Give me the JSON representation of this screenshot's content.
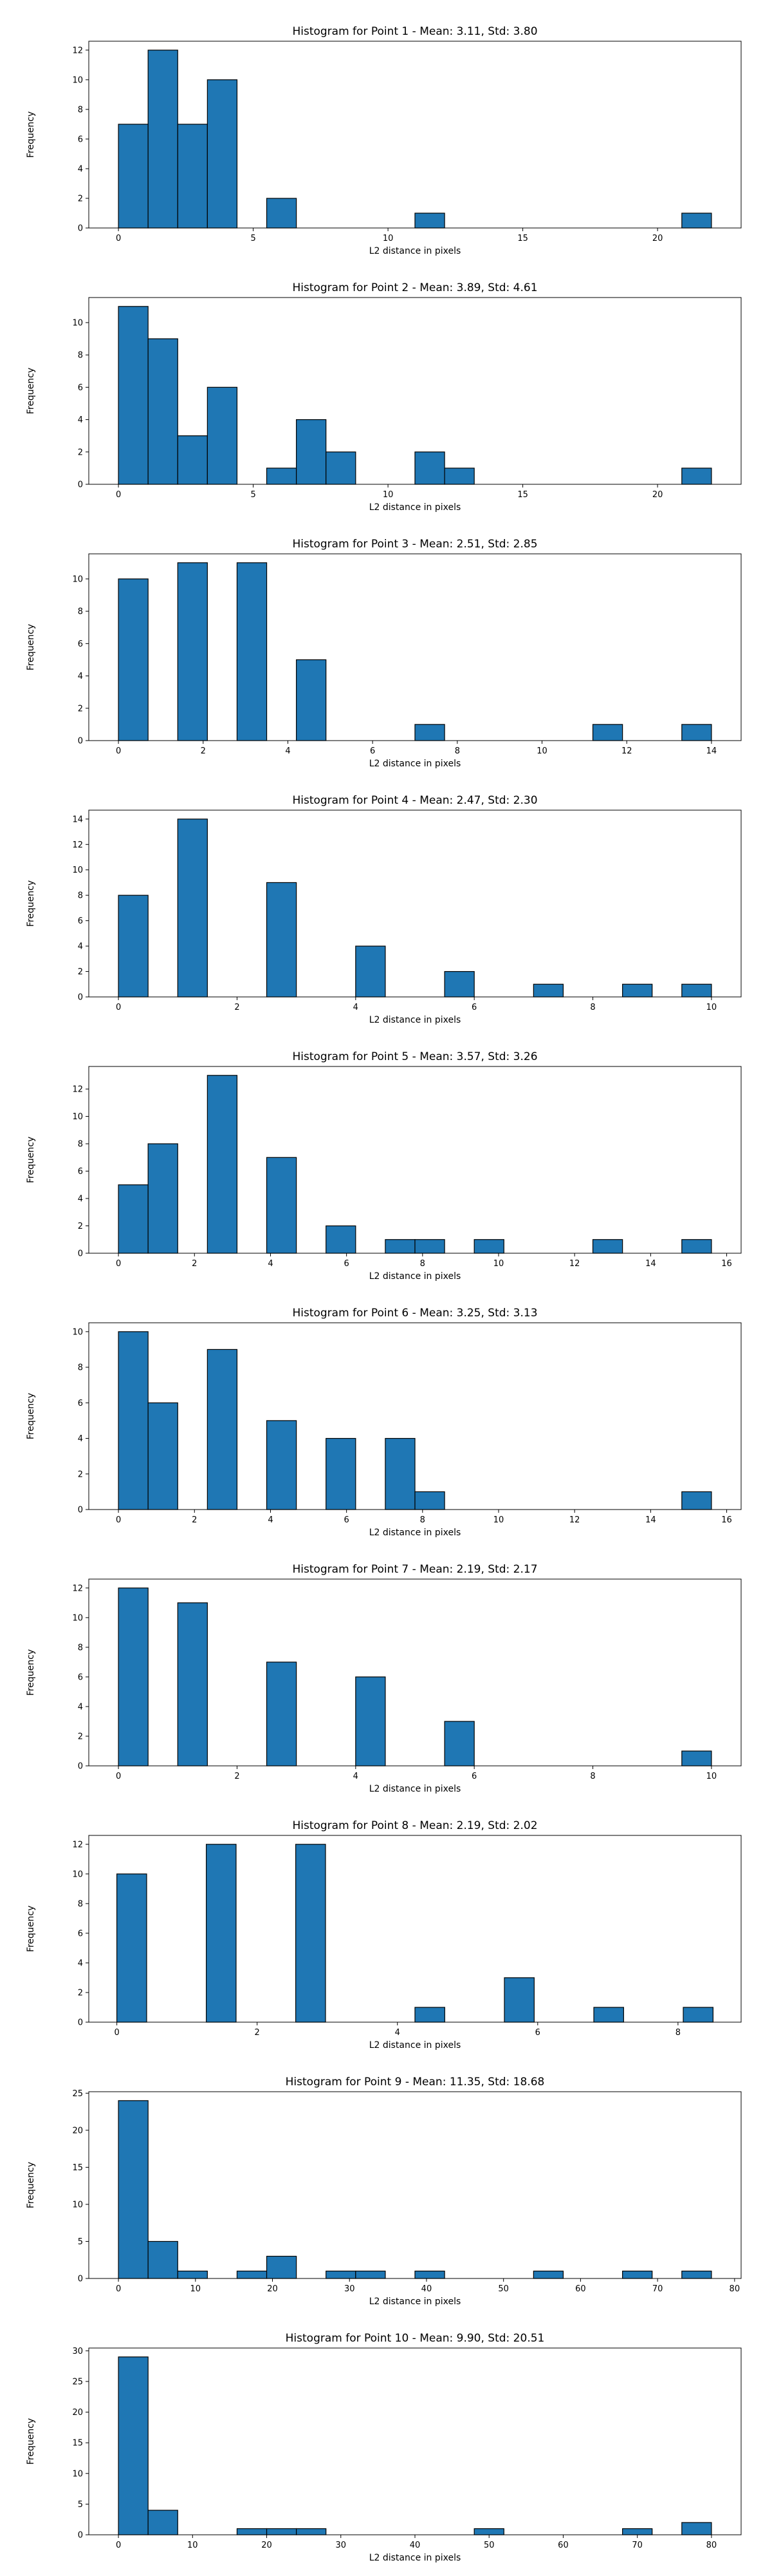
{
  "figure": {
    "bar_color": "#1f77b4",
    "edge_color": "#000000"
  },
  "chart_data": [
    {
      "type": "bar",
      "title": "Histogram for Point 1 - Mean: 3.11, Std: 3.80",
      "xlabel": "L2 distance in pixels",
      "ylabel": "Frequency",
      "xlim": [
        -1.1,
        23.1
      ],
      "ylim": [
        0,
        12.6
      ],
      "xticks": [
        0,
        5,
        10,
        15,
        20
      ],
      "yticks": [
        0,
        2,
        4,
        6,
        8,
        10,
        12
      ],
      "grid": false,
      "bars": [
        {
          "x0": 0.0,
          "x1": 1.1,
          "count": 7
        },
        {
          "x0": 1.1,
          "x1": 2.2,
          "count": 12
        },
        {
          "x0": 2.2,
          "x1": 3.3,
          "count": 7
        },
        {
          "x0": 3.3,
          "x1": 4.4,
          "count": 10
        },
        {
          "x0": 5.5,
          "x1": 6.6,
          "count": 2
        },
        {
          "x0": 11.0,
          "x1": 12.1,
          "count": 1
        },
        {
          "x0": 20.9,
          "x1": 22.0,
          "count": 1
        }
      ]
    },
    {
      "type": "bar",
      "title": "Histogram for Point 2 - Mean: 3.89, Std: 4.61",
      "xlabel": "L2 distance in pixels",
      "ylabel": "Frequency",
      "xlim": [
        -1.1,
        23.1
      ],
      "ylim": [
        0,
        11.55
      ],
      "xticks": [
        0,
        5,
        10,
        15,
        20
      ],
      "yticks": [
        0,
        2,
        4,
        6,
        8,
        10
      ],
      "grid": false,
      "bars": [
        {
          "x0": 0.0,
          "x1": 1.1,
          "count": 11
        },
        {
          "x0": 1.1,
          "x1": 2.2,
          "count": 9
        },
        {
          "x0": 2.2,
          "x1": 3.3,
          "count": 3
        },
        {
          "x0": 3.3,
          "x1": 4.4,
          "count": 6
        },
        {
          "x0": 5.5,
          "x1": 6.6,
          "count": 1
        },
        {
          "x0": 6.6,
          "x1": 7.7,
          "count": 4
        },
        {
          "x0": 7.7,
          "x1": 8.8,
          "count": 2
        },
        {
          "x0": 11.0,
          "x1": 12.1,
          "count": 2
        },
        {
          "x0": 12.1,
          "x1": 13.2,
          "count": 1
        },
        {
          "x0": 20.9,
          "x1": 22.0,
          "count": 1
        }
      ]
    },
    {
      "type": "bar",
      "title": "Histogram for Point 3 - Mean: 2.51, Std: 2.85",
      "xlabel": "L2 distance in pixels",
      "ylabel": "Frequency",
      "xlim": [
        -0.7,
        14.7
      ],
      "ylim": [
        0,
        11.55
      ],
      "xticks": [
        0,
        2,
        4,
        6,
        8,
        10,
        12,
        14
      ],
      "yticks": [
        0,
        2,
        4,
        6,
        8,
        10
      ],
      "grid": false,
      "bars": [
        {
          "x0": 0.0,
          "x1": 0.7,
          "count": 10
        },
        {
          "x0": 1.4,
          "x1": 2.1,
          "count": 11
        },
        {
          "x0": 2.8,
          "x1": 3.5,
          "count": 11
        },
        {
          "x0": 4.2,
          "x1": 4.9,
          "count": 5
        },
        {
          "x0": 7.0,
          "x1": 7.7,
          "count": 1
        },
        {
          "x0": 11.2,
          "x1": 11.9,
          "count": 1
        },
        {
          "x0": 13.3,
          "x1": 14.0,
          "count": 1
        }
      ]
    },
    {
      "type": "bar",
      "title": "Histogram for Point 4 - Mean: 2.47, Std: 2.30",
      "xlabel": "L2 distance in pixels",
      "ylabel": "Frequency",
      "xlim": [
        -0.5,
        10.5
      ],
      "ylim": [
        0,
        14.7
      ],
      "xticks": [
        0,
        2,
        4,
        6,
        8,
        10
      ],
      "yticks": [
        0,
        2,
        4,
        6,
        8,
        10,
        12,
        14
      ],
      "grid": false,
      "bars": [
        {
          "x0": 0.0,
          "x1": 0.5,
          "count": 8
        },
        {
          "x0": 1.0,
          "x1": 1.5,
          "count": 14
        },
        {
          "x0": 2.5,
          "x1": 3.0,
          "count": 9
        },
        {
          "x0": 4.0,
          "x1": 4.5,
          "count": 4
        },
        {
          "x0": 5.5,
          "x1": 6.0,
          "count": 2
        },
        {
          "x0": 7.0,
          "x1": 7.5,
          "count": 1
        },
        {
          "x0": 8.5,
          "x1": 9.0,
          "count": 1
        },
        {
          "x0": 9.5,
          "x1": 10.0,
          "count": 1
        }
      ]
    },
    {
      "type": "bar",
      "title": "Histogram for Point 5 - Mean: 3.57, Std: 3.26",
      "xlabel": "L2 distance in pixels",
      "ylabel": "Frequency",
      "xlim": [
        -0.78,
        16.38
      ],
      "ylim": [
        0,
        13.65
      ],
      "xticks": [
        0,
        2,
        4,
        6,
        8,
        10,
        12,
        14,
        16
      ],
      "yticks": [
        0,
        2,
        4,
        6,
        8,
        10,
        12
      ],
      "grid": false,
      "bars": [
        {
          "x0": 0.0,
          "x1": 0.78,
          "count": 5
        },
        {
          "x0": 0.78,
          "x1": 1.56,
          "count": 8
        },
        {
          "x0": 2.34,
          "x1": 3.12,
          "count": 13
        },
        {
          "x0": 3.9,
          "x1": 4.68,
          "count": 7
        },
        {
          "x0": 5.46,
          "x1": 6.24,
          "count": 2
        },
        {
          "x0": 7.02,
          "x1": 7.8,
          "count": 1
        },
        {
          "x0": 7.8,
          "x1": 8.58,
          "count": 1
        },
        {
          "x0": 9.36,
          "x1": 10.14,
          "count": 1
        },
        {
          "x0": 12.48,
          "x1": 13.26,
          "count": 1
        },
        {
          "x0": 14.82,
          "x1": 15.6,
          "count": 1
        }
      ]
    },
    {
      "type": "bar",
      "title": "Histogram for Point 6 - Mean: 3.25, Std: 3.13",
      "xlabel": "L2 distance in pixels",
      "ylabel": "Frequency",
      "xlim": [
        -0.78,
        16.38
      ],
      "ylim": [
        0,
        10.5
      ],
      "xticks": [
        0,
        2,
        4,
        6,
        8,
        10,
        12,
        14,
        16
      ],
      "yticks": [
        0,
        2,
        4,
        6,
        8,
        10
      ],
      "grid": false,
      "bars": [
        {
          "x0": 0.0,
          "x1": 0.78,
          "count": 10
        },
        {
          "x0": 0.78,
          "x1": 1.56,
          "count": 6
        },
        {
          "x0": 2.34,
          "x1": 3.12,
          "count": 9
        },
        {
          "x0": 3.9,
          "x1": 4.68,
          "count": 5
        },
        {
          "x0": 5.46,
          "x1": 6.24,
          "count": 4
        },
        {
          "x0": 7.02,
          "x1": 7.8,
          "count": 4
        },
        {
          "x0": 7.8,
          "x1": 8.58,
          "count": 1
        },
        {
          "x0": 14.82,
          "x1": 15.6,
          "count": 1
        }
      ]
    },
    {
      "type": "bar",
      "title": "Histogram for Point 7 - Mean: 2.19, Std: 2.17",
      "xlabel": "L2 distance in pixels",
      "ylabel": "Frequency",
      "xlim": [
        -0.5,
        10.5
      ],
      "ylim": [
        0,
        12.6
      ],
      "xticks": [
        0,
        2,
        4,
        6,
        8,
        10
      ],
      "yticks": [
        0,
        2,
        4,
        6,
        8,
        10,
        12
      ],
      "grid": false,
      "bars": [
        {
          "x0": 0.0,
          "x1": 0.5,
          "count": 12
        },
        {
          "x0": 1.0,
          "x1": 1.5,
          "count": 11
        },
        {
          "x0": 2.5,
          "x1": 3.0,
          "count": 7
        },
        {
          "x0": 4.0,
          "x1": 4.5,
          "count": 6
        },
        {
          "x0": 5.5,
          "x1": 6.0,
          "count": 3
        },
        {
          "x0": 9.5,
          "x1": 10.0,
          "count": 1
        }
      ]
    },
    {
      "type": "bar",
      "title": "Histogram for Point 8 - Mean: 2.19, Std: 2.02",
      "xlabel": "L2 distance in pixels",
      "ylabel": "Frequency",
      "xlim": [
        -0.4,
        8.9
      ],
      "ylim": [
        0,
        12.6
      ],
      "xticks": [
        0,
        2,
        4,
        6,
        8
      ],
      "yticks": [
        0,
        2,
        4,
        6,
        8,
        10,
        12
      ],
      "grid": false,
      "bars": [
        {
          "x0": 0.0,
          "x1": 0.425,
          "count": 10
        },
        {
          "x0": 1.275,
          "x1": 1.7,
          "count": 12
        },
        {
          "x0": 2.55,
          "x1": 2.975,
          "count": 12
        },
        {
          "x0": 4.25,
          "x1": 4.675,
          "count": 1
        },
        {
          "x0": 5.525,
          "x1": 5.95,
          "count": 3
        },
        {
          "x0": 6.8,
          "x1": 7.225,
          "count": 1
        },
        {
          "x0": 8.075,
          "x1": 8.5,
          "count": 1
        }
      ]
    },
    {
      "type": "bar",
      "title": "Histogram for Point 9 - Mean: 11.35, Std: 18.68",
      "xlabel": "L2 distance in pixels",
      "ylabel": "Frequency",
      "xlim": [
        -3.85,
        80.85
      ],
      "ylim": [
        0,
        25.2
      ],
      "xticks": [
        0,
        10,
        20,
        30,
        40,
        50,
        60,
        70,
        80
      ],
      "yticks": [
        0,
        5,
        10,
        15,
        20,
        25
      ],
      "grid": false,
      "bars": [
        {
          "x0": 0.0,
          "x1": 3.85,
          "count": 24
        },
        {
          "x0": 3.85,
          "x1": 7.7,
          "count": 5
        },
        {
          "x0": 7.7,
          "x1": 11.55,
          "count": 1
        },
        {
          "x0": 15.4,
          "x1": 19.25,
          "count": 1
        },
        {
          "x0": 19.25,
          "x1": 23.1,
          "count": 3
        },
        {
          "x0": 26.95,
          "x1": 30.8,
          "count": 1
        },
        {
          "x0": 30.8,
          "x1": 34.65,
          "count": 1
        },
        {
          "x0": 38.5,
          "x1": 42.35,
          "count": 1
        },
        {
          "x0": 53.9,
          "x1": 57.75,
          "count": 1
        },
        {
          "x0": 65.45,
          "x1": 69.3,
          "count": 1
        },
        {
          "x0": 73.15,
          "x1": 77.0,
          "count": 1
        }
      ]
    },
    {
      "type": "bar",
      "title": "Histogram for Point 10 - Mean: 9.90, Std: 20.51",
      "xlabel": "L2 distance in pixels",
      "ylabel": "Frequency",
      "xlim": [
        -4.0,
        84.0
      ],
      "ylim": [
        0,
        30.45
      ],
      "xticks": [
        0,
        10,
        20,
        30,
        40,
        50,
        60,
        70,
        80
      ],
      "yticks": [
        0,
        5,
        10,
        15,
        20,
        25,
        30
      ],
      "grid": false,
      "bars": [
        {
          "x0": 0.0,
          "x1": 4.0,
          "count": 29
        },
        {
          "x0": 4.0,
          "x1": 8.0,
          "count": 4
        },
        {
          "x0": 16.0,
          "x1": 20.0,
          "count": 1
        },
        {
          "x0": 20.0,
          "x1": 24.0,
          "count": 1
        },
        {
          "x0": 24.0,
          "x1": 28.0,
          "count": 1
        },
        {
          "x0": 48.0,
          "x1": 52.0,
          "count": 1
        },
        {
          "x0": 68.0,
          "x1": 72.0,
          "count": 1
        },
        {
          "x0": 76.0,
          "x1": 80.0,
          "count": 2
        }
      ]
    }
  ]
}
